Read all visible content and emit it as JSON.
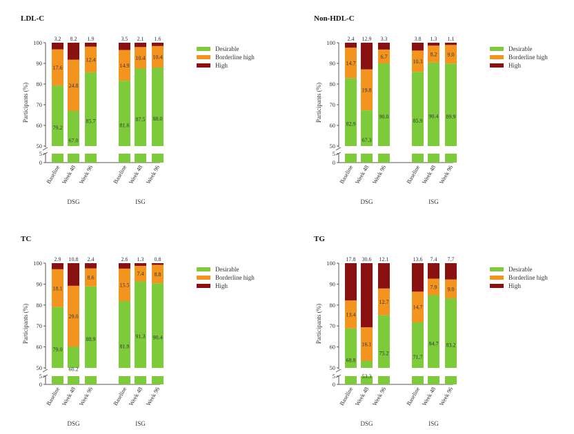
{
  "colors": {
    "desirable": "#7DCB3A",
    "borderline": "#F2941E",
    "high": "#8B1010",
    "axis": "#555555"
  },
  "chart_data": [
    {
      "type": "bar",
      "title": "LDL-C",
      "ylabel": "Participants (%)",
      "ylim": [
        0,
        100
      ],
      "axis_break": [
        5,
        50
      ],
      "yticks": [
        "0",
        "5",
        "50",
        "60",
        "70",
        "80",
        "90",
        "100"
      ],
      "groups": [
        "DSG",
        "ISG"
      ],
      "categories": [
        "Baseline",
        "Week 48",
        "Week 96",
        "Baseline",
        "Week 48",
        "Week 96"
      ],
      "series": [
        {
          "name": "Desirable",
          "values": [
            79.2,
            67.0,
            85.7,
            81.6,
            87.5,
            88.0
          ],
          "labels": [
            "79.2",
            "67.0",
            "85.7",
            "81.6",
            "87.5",
            "88.0"
          ]
        },
        {
          "name": "Borderline high",
          "values": [
            17.6,
            24.8,
            12.4,
            14.9,
            10.4,
            10.4
          ],
          "labels": [
            "17.6",
            "24.8",
            "12.4",
            "14.9",
            "10.4",
            "10.4"
          ]
        },
        {
          "name": "High",
          "values": [
            3.2,
            8.2,
            1.9,
            3.5,
            2.1,
            1.6
          ],
          "labels": [
            "3.2",
            "8.2",
            "1.9",
            "3.5",
            "2.1",
            "1.6"
          ]
        }
      ],
      "legend": [
        "Desirable",
        "Borderline high",
        "High"
      ]
    },
    {
      "type": "bar",
      "title": "Non-HDL-C",
      "ylabel": "Participants (%)",
      "ylim": [
        0,
        100
      ],
      "axis_break": [
        5,
        50
      ],
      "yticks": [
        "0",
        "5",
        "50",
        "60",
        "70",
        "80",
        "90",
        "100"
      ],
      "groups": [
        "DSG",
        "ISG"
      ],
      "categories": [
        "Baseline",
        "Week 48",
        "Week 96",
        "Baseline",
        "Week 48",
        "Week 96"
      ],
      "series": [
        {
          "name": "Desirable",
          "values": [
            82.9,
            67.3,
            90.0,
            85.9,
            90.4,
            89.9
          ],
          "labels": [
            "82.9",
            "67.3",
            "90.0",
            "85.9",
            "90.4",
            "89.9"
          ]
        },
        {
          "name": "Borderline high",
          "values": [
            14.7,
            19.8,
            6.7,
            10.3,
            8.2,
            9.0
          ],
          "labels": [
            "14.7",
            "19.8",
            "6.7",
            "10.3",
            "8.2",
            "9.0"
          ]
        },
        {
          "name": "High",
          "values": [
            2.4,
            12.9,
            3.3,
            3.8,
            1.3,
            1.1
          ],
          "labels": [
            "2.4",
            "12.9",
            "3.3",
            "3.8",
            "1.3",
            "1.1"
          ]
        }
      ],
      "legend": [
        "Desirable",
        "Borderline high",
        "High"
      ]
    },
    {
      "type": "bar",
      "title": "TC",
      "ylabel": "Participants (%)",
      "ylim": [
        0,
        100
      ],
      "axis_break": [
        5,
        50
      ],
      "yticks": [
        "0",
        "5",
        "50",
        "60",
        "70",
        "80",
        "90",
        "100"
      ],
      "groups": [
        "DSG",
        "ISG"
      ],
      "categories": [
        "Baseline",
        "Week 48",
        "Week 96",
        "Baseline",
        "Week 48",
        "Week 96"
      ],
      "series": [
        {
          "name": "Desirable",
          "values": [
            79.0,
            60.2,
            88.9,
            81.9,
            91.3,
            90.4
          ],
          "labels": [
            "79.0",
            "60.2",
            "88.9",
            "81.9",
            "91.3",
            "90.4"
          ]
        },
        {
          "name": "Borderline high",
          "values": [
            18.1,
            29.0,
            8.6,
            15.5,
            7.4,
            8.8
          ],
          "labels": [
            "18.1",
            "29.0",
            "8.6",
            "15.5",
            "7.4",
            "8.8"
          ]
        },
        {
          "name": "High",
          "values": [
            2.9,
            10.8,
            2.4,
            2.6,
            1.3,
            0.8
          ],
          "labels": [
            "2.9",
            "10.8",
            "2.4",
            "2.6",
            "1.3",
            "0.8"
          ]
        }
      ],
      "legend": [
        "Desirable",
        "Borderline high",
        "High"
      ]
    },
    {
      "type": "bar",
      "title": "TG",
      "ylabel": "Participants (%)",
      "ylim": [
        0,
        100
      ],
      "axis_break": [
        5,
        50
      ],
      "yticks": [
        "0",
        "5",
        "50",
        "60",
        "70",
        "80",
        "90",
        "100"
      ],
      "groups": [
        "DSG",
        "ISG"
      ],
      "categories": [
        "Baseline",
        "Week 48",
        "Week 96",
        "Baseline",
        "Week 48",
        "Week 96"
      ],
      "series": [
        {
          "name": "Desirable",
          "values": [
            68.8,
            53.3,
            75.2,
            71.7,
            84.7,
            83.2
          ],
          "labels": [
            "68.8",
            "53.3",
            "75.2",
            "71.7",
            "84.7",
            "83.2"
          ]
        },
        {
          "name": "Borderline high",
          "values": [
            13.4,
            16.1,
            12.7,
            14.7,
            7.9,
            9.0
          ],
          "labels": [
            "13.4",
            "16.1",
            "12.7",
            "14.7",
            "7.9",
            "9.0"
          ]
        },
        {
          "name": "High",
          "values": [
            17.8,
            30.6,
            12.1,
            13.6,
            7.4,
            7.7
          ],
          "labels": [
            "17.8",
            "30.6",
            "12.1",
            "13.6",
            "7.4",
            "7.7"
          ]
        }
      ],
      "legend": [
        "Desirable",
        "Borderline high",
        "High"
      ]
    }
  ]
}
